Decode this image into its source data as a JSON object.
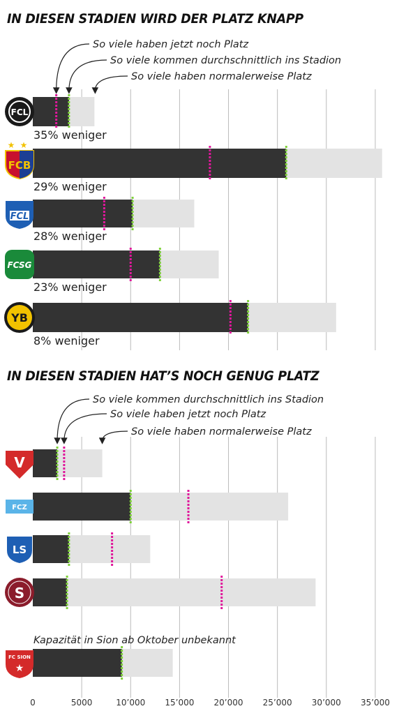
{
  "chart_data": {
    "type": "bar",
    "xlim": [
      0,
      37000
    ],
    "x_ticks": [
      0,
      5000,
      10000,
      15000,
      20000,
      25000,
      30000,
      35000
    ],
    "x_tick_labels": [
      "0",
      "5000",
      "10’000",
      "15’000",
      "20’000",
      "25’000",
      "30’000",
      "35’000"
    ],
    "grid": "vertical",
    "colors": {
      "average_attendance_bar": "#333333",
      "normal_capacity_bar": "#e3e3e3",
      "current_capacity_marker": "#e0179b",
      "average_marker": "#7fd13a",
      "gridline": "#bbbbbb"
    },
    "sections": [
      {
        "title": "IN DIESEN STADIEN WIRD DER PLATZ KNAPP",
        "annotations": [
          {
            "text": "So viele haben jetzt noch Platz",
            "points_to": "current_capacity"
          },
          {
            "text": "So viele kommen durchschnittlich ins Stadion",
            "points_to": "average_attendance"
          },
          {
            "text": "So viele haben normalerweise Platz",
            "points_to": "normal_capacity"
          }
        ],
        "teams": [
          {
            "logo": "fc-lugano-logo",
            "logo_text": "FCL",
            "logo_colors": [
              "#1a1a1a",
              "#ffffff"
            ],
            "average_attendance": 3700,
            "normal_capacity": 6300,
            "current_capacity": 2400,
            "label": "35% weniger"
          },
          {
            "logo": "fc-basel-logo",
            "logo_text": "FCB",
            "logo_colors": [
              "#c8102e",
              "#1c3f94",
              "#f2c200"
            ],
            "average_attendance": 25900,
            "normal_capacity": 35700,
            "current_capacity": 18100,
            "label": "29% weniger"
          },
          {
            "logo": "fc-luzern-logo",
            "logo_text": "FCL",
            "logo_colors": [
              "#1e5fb4",
              "#ffffff"
            ],
            "average_attendance": 10200,
            "normal_capacity": 16500,
            "current_capacity": 7300,
            "label": "28% weniger"
          },
          {
            "logo": "fc-st-gallen-logo",
            "logo_text": "FCSG",
            "logo_colors": [
              "#1a8a3a",
              "#ffffff"
            ],
            "average_attendance": 13000,
            "normal_capacity": 19000,
            "current_capacity": 10000,
            "label": "23% weniger"
          },
          {
            "logo": "bsc-young-boys-logo",
            "logo_text": "YB",
            "logo_colors": [
              "#f2c200",
              "#1a1a1a"
            ],
            "average_attendance": 22000,
            "normal_capacity": 31000,
            "current_capacity": 20200,
            "label": "8% weniger"
          }
        ]
      },
      {
        "title": "IN DIESEN STADIEN HAT’S NOCH GENUG PLATZ",
        "annotations": [
          {
            "text": "So viele kommen durchschnittlich ins Stadion",
            "points_to": "average_attendance"
          },
          {
            "text": "So viele haben jetzt noch Platz",
            "points_to": "current_capacity"
          },
          {
            "text": "So viele haben normalerweise Platz",
            "points_to": "normal_capacity"
          }
        ],
        "teams": [
          {
            "logo": "fc-vaduz-logo",
            "logo_text": "V",
            "logo_colors": [
              "#d42a2a",
              "#ffffff"
            ],
            "average_attendance": 2500,
            "normal_capacity": 7100,
            "current_capacity": 3200
          },
          {
            "logo": "fc-zurich-logo",
            "logo_text": "FCZ",
            "logo_colors": [
              "#5ab4e8",
              "#ffffff"
            ],
            "average_attendance": 10000,
            "normal_capacity": 26100,
            "current_capacity": 15900
          },
          {
            "logo": "fc-lausanne-sport-logo",
            "logo_text": "LS",
            "logo_colors": [
              "#1e5fb4",
              "#ffffff"
            ],
            "average_attendance": 3700,
            "normal_capacity": 12000,
            "current_capacity": 8100
          },
          {
            "logo": "servette-fc-logo",
            "logo_text": "S",
            "logo_colors": [
              "#8b1c2b",
              "#ffffff"
            ],
            "average_attendance": 3500,
            "normal_capacity": 28900,
            "current_capacity": 19300
          }
        ]
      },
      {
        "title": "",
        "annotations": [
          {
            "text": "Kapazität in Sion ab Oktober unbekannt",
            "points_to": ""
          }
        ],
        "teams": [
          {
            "logo": "fc-sion-logo",
            "logo_text": "FC SION",
            "logo_colors": [
              "#d42a2a",
              "#ffffff"
            ],
            "average_attendance": 9100,
            "normal_capacity": 14300
          }
        ]
      }
    ]
  }
}
